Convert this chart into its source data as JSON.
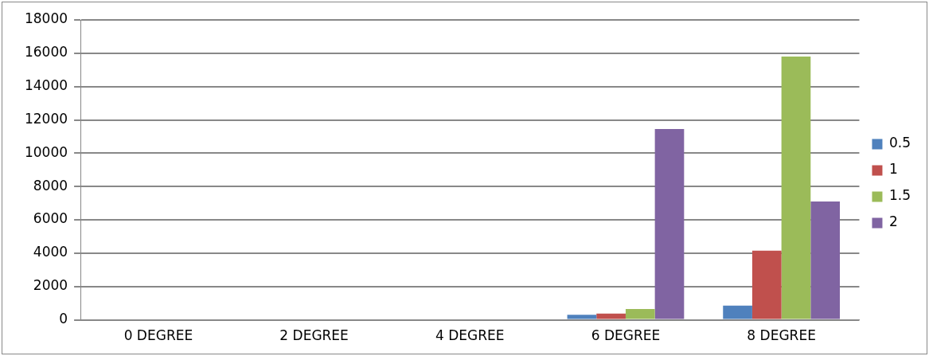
{
  "chart_data": {
    "type": "bar",
    "categories": [
      "0 DEGREE",
      "2 DEGREE",
      "4 DEGREE",
      "6 DEGREE",
      "8 DEGREE"
    ],
    "series": [
      {
        "name": "0.5",
        "color": "#4f81bd",
        "values": [
          0,
          0,
          0,
          300,
          850
        ]
      },
      {
        "name": "1",
        "color": "#c0504d",
        "values": [
          0,
          0,
          0,
          380,
          4150
        ]
      },
      {
        "name": "1.5",
        "color": "#9bbb59",
        "values": [
          0,
          0,
          0,
          650,
          15800
        ]
      },
      {
        "name": "2",
        "color": "#8064a2",
        "values": [
          0,
          0,
          0,
          11450,
          7100
        ]
      }
    ],
    "ylim": [
      0,
      18000
    ],
    "yticks": [
      0,
      2000,
      4000,
      6000,
      8000,
      10000,
      12000,
      14000,
      16000,
      18000
    ],
    "grid": "y",
    "legend": "right"
  }
}
